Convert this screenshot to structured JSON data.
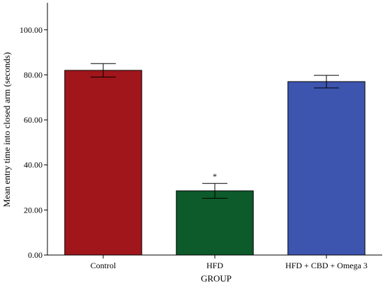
{
  "chart_data": {
    "type": "bar",
    "xlabel": "GROUP",
    "ylabel": "Mean entry time into closed arm (seconds)",
    "categories": [
      "Control",
      "HFD",
      "HFD + CBD + Omega 3"
    ],
    "values": [
      82.0,
      28.5,
      77.0
    ],
    "error_low": [
      79.0,
      25.2,
      74.2
    ],
    "error_high": [
      85.0,
      31.8,
      79.8
    ],
    "bar_colors": [
      "#a0161b",
      "#0d5a2a",
      "#3e55b0"
    ],
    "annotations": [
      {
        "category": "HFD",
        "text": "*"
      }
    ],
    "ylim": [
      0,
      112
    ],
    "yticks": [
      0,
      20,
      40,
      60,
      80,
      100
    ],
    "ytick_labels": [
      "0.00",
      "20.00",
      "40.00",
      "60.00",
      "80.00",
      "100.00"
    ],
    "grid": false
  }
}
